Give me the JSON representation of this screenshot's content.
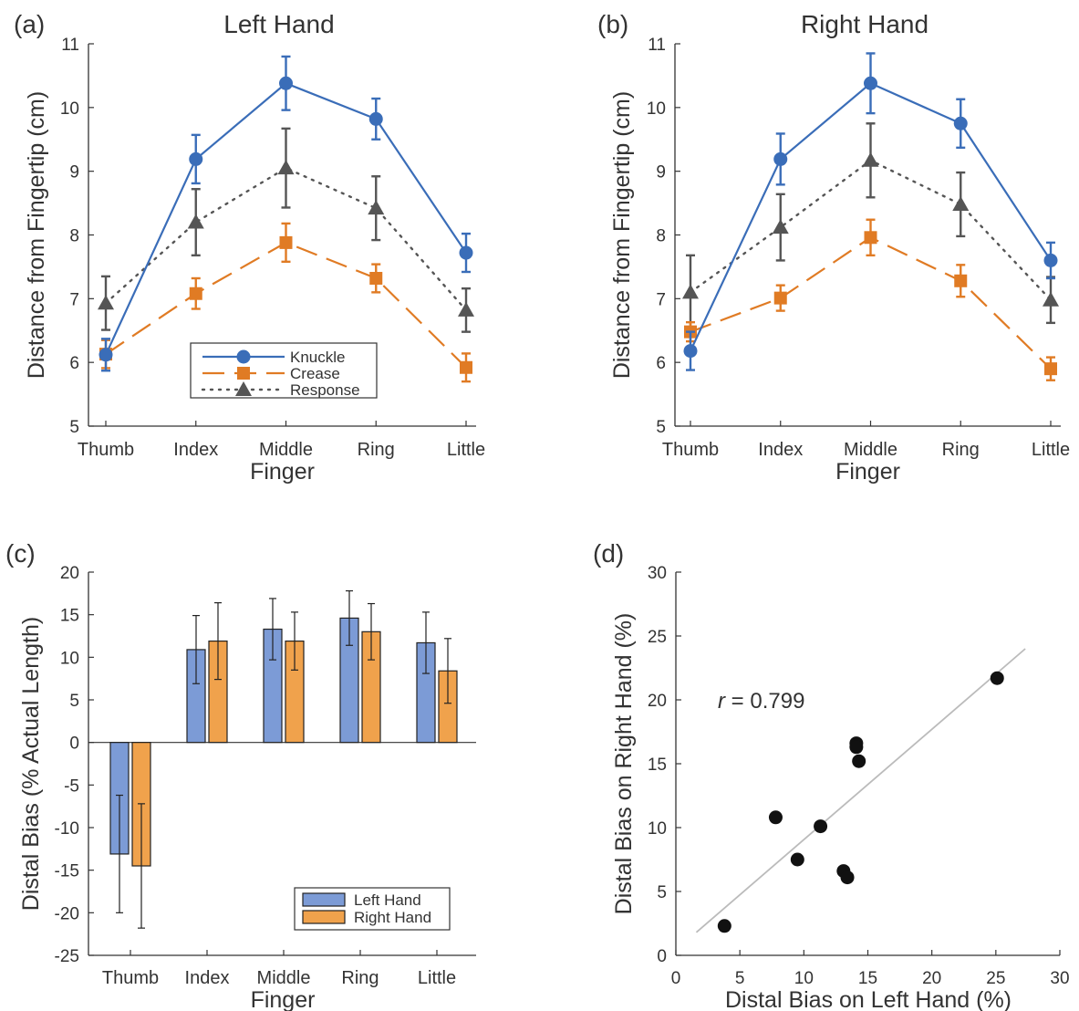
{
  "colors": {
    "knuckle": "#3A6DB8",
    "crease": "#E07B24",
    "response": "#555555",
    "left_bar": "#7C9BD6",
    "right_bar": "#F0A24C",
    "scatter": "#111111",
    "fit": "#BBBBBB"
  },
  "chart_data": [
    {
      "panel": "(a)",
      "type": "line",
      "title": "Left Hand",
      "xlabel": "Finger",
      "ylabel": "Distance from Fingertip (cm)",
      "ylim": [
        5,
        11
      ],
      "yticks": [
        5,
        6,
        7,
        8,
        9,
        10,
        11
      ],
      "categories": [
        "Thumb",
        "Index",
        "Middle",
        "Ring",
        "Little"
      ],
      "legend": {
        "position": "bottom-center",
        "labels": [
          "Knuckle",
          "Crease",
          "Response"
        ]
      },
      "series": [
        {
          "name": "Knuckle",
          "values": [
            6.12,
            9.19,
            10.38,
            9.82,
            7.72
          ],
          "errors": [
            0.25,
            0.38,
            0.42,
            0.32,
            0.3
          ]
        },
        {
          "name": "Crease",
          "values": [
            6.13,
            7.08,
            7.88,
            7.32,
            5.92
          ],
          "errors": [
            0.22,
            0.24,
            0.3,
            0.22,
            0.22
          ]
        },
        {
          "name": "Response",
          "values": [
            6.93,
            8.2,
            9.05,
            8.42,
            6.82
          ],
          "errors": [
            0.42,
            0.52,
            0.62,
            0.5,
            0.34
          ]
        }
      ]
    },
    {
      "panel": "(b)",
      "type": "line",
      "title": "Right Hand",
      "xlabel": "Finger",
      "ylabel": "Distance from Fingertip (cm)",
      "ylim": [
        5,
        11
      ],
      "yticks": [
        5,
        6,
        7,
        8,
        9,
        10,
        11
      ],
      "categories": [
        "Thumb",
        "Index",
        "Middle",
        "Ring",
        "Little"
      ],
      "series": [
        {
          "name": "Knuckle",
          "values": [
            6.18,
            9.19,
            10.38,
            9.75,
            7.6
          ],
          "errors": [
            0.3,
            0.4,
            0.47,
            0.38,
            0.28
          ]
        },
        {
          "name": "Crease",
          "values": [
            6.48,
            7.01,
            7.96,
            7.28,
            5.9
          ],
          "errors": [
            0.15,
            0.2,
            0.28,
            0.25,
            0.18
          ]
        },
        {
          "name": "Response",
          "values": [
            7.1,
            8.12,
            9.17,
            8.48,
            6.98
          ],
          "errors": [
            0.58,
            0.52,
            0.58,
            0.5,
            0.36
          ]
        }
      ]
    },
    {
      "panel": "(c)",
      "type": "bar",
      "xlabel": "Finger",
      "ylabel": "Distal Bias (% Actual Length)",
      "ylim": [
        -25,
        20
      ],
      "yticks": [
        -25,
        -20,
        -15,
        -10,
        -5,
        0,
        5,
        10,
        15,
        20
      ],
      "categories": [
        "Thumb",
        "Index",
        "Middle",
        "Ring",
        "Little"
      ],
      "legend": {
        "position": "bottom-right",
        "labels": [
          "Left Hand",
          "Right Hand"
        ]
      },
      "series": [
        {
          "name": "Left Hand",
          "values": [
            -13.1,
            10.9,
            13.3,
            14.6,
            11.7
          ],
          "errors": [
            6.9,
            4.0,
            3.6,
            3.2,
            3.6
          ]
        },
        {
          "name": "Right Hand",
          "values": [
            -14.5,
            11.9,
            11.9,
            13.0,
            8.4
          ],
          "errors": [
            7.3,
            4.5,
            3.4,
            3.3,
            3.8
          ]
        }
      ]
    },
    {
      "panel": "(d)",
      "type": "scatter",
      "xlabel": "Distal Bias on Left Hand (%)",
      "ylabel": "Distal Bias on Right Hand (%)",
      "xlim": [
        0,
        30
      ],
      "ylim": [
        0,
        30
      ],
      "xticks": [
        0,
        5,
        10,
        15,
        20,
        25,
        30
      ],
      "yticks": [
        0,
        5,
        10,
        15,
        20,
        25,
        30
      ],
      "annotation": {
        "symbol": "r",
        "text": " = 0.799"
      },
      "points": [
        {
          "x": 3.8,
          "y": 2.3
        },
        {
          "x": 7.8,
          "y": 10.8
        },
        {
          "x": 9.5,
          "y": 7.5
        },
        {
          "x": 11.3,
          "y": 10.1
        },
        {
          "x": 13.1,
          "y": 6.6
        },
        {
          "x": 13.4,
          "y": 6.1
        },
        {
          "x": 14.1,
          "y": 16.6
        },
        {
          "x": 14.1,
          "y": 16.3
        },
        {
          "x": 14.3,
          "y": 15.2
        },
        {
          "x": 25.1,
          "y": 21.7
        }
      ],
      "fit_line": {
        "x": [
          1.6,
          27.3
        ],
        "y": [
          1.8,
          24.0
        ]
      }
    }
  ]
}
